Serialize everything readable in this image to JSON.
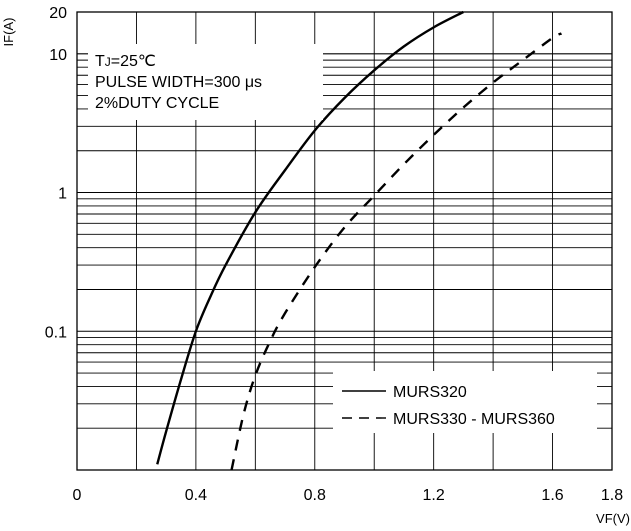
{
  "chart_data": {
    "type": "line",
    "xlabel": "VF(V)",
    "ylabel": "IF(A)",
    "xlim": [
      0,
      1.8
    ],
    "ylim": [
      0.01,
      20
    ],
    "yscale": "log",
    "x_ticks": [
      {
        "value": 0,
        "label": "0"
      },
      {
        "value": 0.4,
        "label": "0.4"
      },
      {
        "value": 0.8,
        "label": "0.8"
      },
      {
        "value": 1.2,
        "label": "1.2"
      },
      {
        "value": 1.6,
        "label": "1.6"
      },
      {
        "value": 1.8,
        "label": "1.8"
      }
    ],
    "y_ticks": [
      {
        "value": 0.1,
        "label": "0.1"
      },
      {
        "value": 1,
        "label": "1"
      },
      {
        "value": 10,
        "label": "10"
      },
      {
        "value": 20,
        "label": "20"
      }
    ],
    "grid": true,
    "annotation_lines": [
      "T",
      "J",
      "=25℃",
      "PULSE WIDTH=300 μs",
      "2%DUTY CYCLE"
    ],
    "legend_placement": "bottom-right",
    "series": [
      {
        "name": "MURS320",
        "style": "solid",
        "x": [
          0.27,
          0.3,
          0.35,
          0.4,
          0.45,
          0.5,
          0.6,
          0.7,
          0.8,
          0.9,
          1.0,
          1.1,
          1.2,
          1.3
        ],
        "y": [
          0.011,
          0.019,
          0.045,
          0.1,
          0.18,
          0.3,
          0.72,
          1.45,
          2.8,
          4.8,
          7.6,
          11.3,
          15.5,
          20
        ]
      },
      {
        "name": "MURS330 - MURS360",
        "style": "dashed",
        "x": [
          0.52,
          0.56,
          0.6,
          0.65,
          0.7,
          0.8,
          0.9,
          1.0,
          1.1,
          1.2,
          1.3,
          1.4,
          1.5,
          1.6,
          1.63
        ],
        "y": [
          0.01,
          0.025,
          0.048,
          0.085,
          0.135,
          0.29,
          0.56,
          0.95,
          1.6,
          2.6,
          4.1,
          6.2,
          9.0,
          13.0,
          14.0
        ]
      }
    ]
  }
}
